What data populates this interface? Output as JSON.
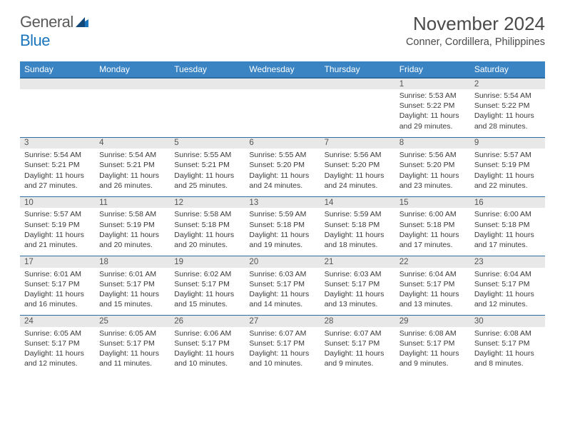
{
  "colors": {
    "header_blue": "#3b84c4",
    "logo_gray": "#58595b",
    "logo_blue": "#1b75bc",
    "day_header_bg": "#e8e8e8",
    "row_border": "#2e6ca4",
    "background": "#ffffff",
    "text": "#3a3a3a"
  },
  "logo": {
    "part1": "General",
    "part2": "Blue"
  },
  "title": "November 2024",
  "location": "Conner, Cordillera, Philippines",
  "weekdays": [
    "Sunday",
    "Monday",
    "Tuesday",
    "Wednesday",
    "Thursday",
    "Friday",
    "Saturday"
  ],
  "weeks": [
    {
      "days": [
        {
          "num": "",
          "lines": []
        },
        {
          "num": "",
          "lines": []
        },
        {
          "num": "",
          "lines": []
        },
        {
          "num": "",
          "lines": []
        },
        {
          "num": "",
          "lines": []
        },
        {
          "num": "1",
          "lines": [
            "Sunrise: 5:53 AM",
            "Sunset: 5:22 PM",
            "Daylight: 11 hours",
            "and 29 minutes."
          ]
        },
        {
          "num": "2",
          "lines": [
            "Sunrise: 5:54 AM",
            "Sunset: 5:22 PM",
            "Daylight: 11 hours",
            "and 28 minutes."
          ]
        }
      ]
    },
    {
      "days": [
        {
          "num": "3",
          "lines": [
            "Sunrise: 5:54 AM",
            "Sunset: 5:21 PM",
            "Daylight: 11 hours",
            "and 27 minutes."
          ]
        },
        {
          "num": "4",
          "lines": [
            "Sunrise: 5:54 AM",
            "Sunset: 5:21 PM",
            "Daylight: 11 hours",
            "and 26 minutes."
          ]
        },
        {
          "num": "5",
          "lines": [
            "Sunrise: 5:55 AM",
            "Sunset: 5:21 PM",
            "Daylight: 11 hours",
            "and 25 minutes."
          ]
        },
        {
          "num": "6",
          "lines": [
            "Sunrise: 5:55 AM",
            "Sunset: 5:20 PM",
            "Daylight: 11 hours",
            "and 24 minutes."
          ]
        },
        {
          "num": "7",
          "lines": [
            "Sunrise: 5:56 AM",
            "Sunset: 5:20 PM",
            "Daylight: 11 hours",
            "and 24 minutes."
          ]
        },
        {
          "num": "8",
          "lines": [
            "Sunrise: 5:56 AM",
            "Sunset: 5:20 PM",
            "Daylight: 11 hours",
            "and 23 minutes."
          ]
        },
        {
          "num": "9",
          "lines": [
            "Sunrise: 5:57 AM",
            "Sunset: 5:19 PM",
            "Daylight: 11 hours",
            "and 22 minutes."
          ]
        }
      ]
    },
    {
      "days": [
        {
          "num": "10",
          "lines": [
            "Sunrise: 5:57 AM",
            "Sunset: 5:19 PM",
            "Daylight: 11 hours",
            "and 21 minutes."
          ]
        },
        {
          "num": "11",
          "lines": [
            "Sunrise: 5:58 AM",
            "Sunset: 5:19 PM",
            "Daylight: 11 hours",
            "and 20 minutes."
          ]
        },
        {
          "num": "12",
          "lines": [
            "Sunrise: 5:58 AM",
            "Sunset: 5:18 PM",
            "Daylight: 11 hours",
            "and 20 minutes."
          ]
        },
        {
          "num": "13",
          "lines": [
            "Sunrise: 5:59 AM",
            "Sunset: 5:18 PM",
            "Daylight: 11 hours",
            "and 19 minutes."
          ]
        },
        {
          "num": "14",
          "lines": [
            "Sunrise: 5:59 AM",
            "Sunset: 5:18 PM",
            "Daylight: 11 hours",
            "and 18 minutes."
          ]
        },
        {
          "num": "15",
          "lines": [
            "Sunrise: 6:00 AM",
            "Sunset: 5:18 PM",
            "Daylight: 11 hours",
            "and 17 minutes."
          ]
        },
        {
          "num": "16",
          "lines": [
            "Sunrise: 6:00 AM",
            "Sunset: 5:18 PM",
            "Daylight: 11 hours",
            "and 17 minutes."
          ]
        }
      ]
    },
    {
      "days": [
        {
          "num": "17",
          "lines": [
            "Sunrise: 6:01 AM",
            "Sunset: 5:17 PM",
            "Daylight: 11 hours",
            "and 16 minutes."
          ]
        },
        {
          "num": "18",
          "lines": [
            "Sunrise: 6:01 AM",
            "Sunset: 5:17 PM",
            "Daylight: 11 hours",
            "and 15 minutes."
          ]
        },
        {
          "num": "19",
          "lines": [
            "Sunrise: 6:02 AM",
            "Sunset: 5:17 PM",
            "Daylight: 11 hours",
            "and 15 minutes."
          ]
        },
        {
          "num": "20",
          "lines": [
            "Sunrise: 6:03 AM",
            "Sunset: 5:17 PM",
            "Daylight: 11 hours",
            "and 14 minutes."
          ]
        },
        {
          "num": "21",
          "lines": [
            "Sunrise: 6:03 AM",
            "Sunset: 5:17 PM",
            "Daylight: 11 hours",
            "and 13 minutes."
          ]
        },
        {
          "num": "22",
          "lines": [
            "Sunrise: 6:04 AM",
            "Sunset: 5:17 PM",
            "Daylight: 11 hours",
            "and 13 minutes."
          ]
        },
        {
          "num": "23",
          "lines": [
            "Sunrise: 6:04 AM",
            "Sunset: 5:17 PM",
            "Daylight: 11 hours",
            "and 12 minutes."
          ]
        }
      ]
    },
    {
      "days": [
        {
          "num": "24",
          "lines": [
            "Sunrise: 6:05 AM",
            "Sunset: 5:17 PM",
            "Daylight: 11 hours",
            "and 12 minutes."
          ]
        },
        {
          "num": "25",
          "lines": [
            "Sunrise: 6:05 AM",
            "Sunset: 5:17 PM",
            "Daylight: 11 hours",
            "and 11 minutes."
          ]
        },
        {
          "num": "26",
          "lines": [
            "Sunrise: 6:06 AM",
            "Sunset: 5:17 PM",
            "Daylight: 11 hours",
            "and 10 minutes."
          ]
        },
        {
          "num": "27",
          "lines": [
            "Sunrise: 6:07 AM",
            "Sunset: 5:17 PM",
            "Daylight: 11 hours",
            "and 10 minutes."
          ]
        },
        {
          "num": "28",
          "lines": [
            "Sunrise: 6:07 AM",
            "Sunset: 5:17 PM",
            "Daylight: 11 hours",
            "and 9 minutes."
          ]
        },
        {
          "num": "29",
          "lines": [
            "Sunrise: 6:08 AM",
            "Sunset: 5:17 PM",
            "Daylight: 11 hours",
            "and 9 minutes."
          ]
        },
        {
          "num": "30",
          "lines": [
            "Sunrise: 6:08 AM",
            "Sunset: 5:17 PM",
            "Daylight: 11 hours",
            "and 8 minutes."
          ]
        }
      ]
    }
  ]
}
